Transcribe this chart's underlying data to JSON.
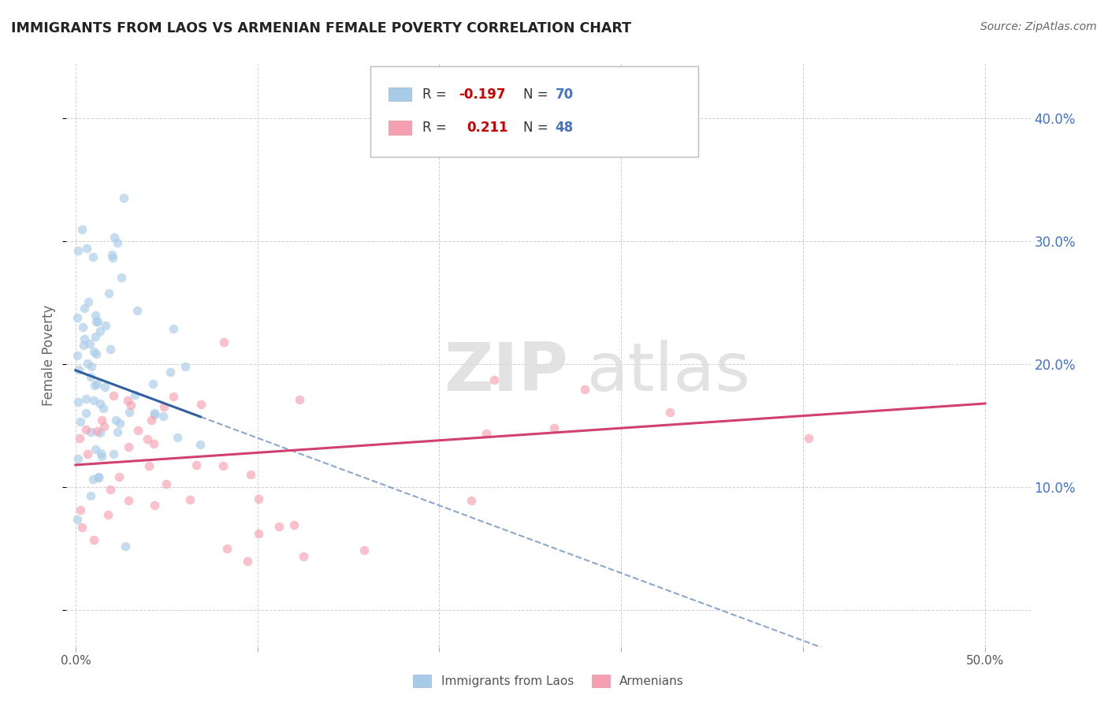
{
  "title": "IMMIGRANTS FROM LAOS VS ARMENIAN FEMALE POVERTY CORRELATION CHART",
  "source": "Source: ZipAtlas.com",
  "ylabel": "Female Poverty",
  "y_tick_vals": [
    0.0,
    0.1,
    0.2,
    0.3,
    0.4
  ],
  "y_tick_labels": [
    "",
    "10.0%",
    "20.0%",
    "30.0%",
    "40.0%"
  ],
  "x_tick_vals": [
    0.0,
    0.1,
    0.2,
    0.3,
    0.4,
    0.5
  ],
  "x_tick_labels": [
    "0.0%",
    "",
    "",
    "",
    "",
    "50.0%"
  ],
  "x_lim": [
    -0.005,
    0.525
  ],
  "y_lim": [
    -0.03,
    0.445
  ],
  "blue_scatter_color": "#a8cce8",
  "pink_scatter_color": "#f5a0b0",
  "blue_line_color": "#3060a0",
  "pink_line_color": "#d04070",
  "blue_line_alpha": 1.0,
  "pink_line_alpha": 1.0,
  "scatter_size": 70,
  "scatter_alpha": 0.65,
  "grid_color": "#cccccc",
  "watermark_color": "#dddddd",
  "right_tick_color": "#4472c4",
  "title_color": "#222222",
  "source_color": "#666666",
  "legend_r1": "R = -0.197",
  "legend_n1": "N = 70",
  "legend_r2": "R =  0.211",
  "legend_n2": "N = 48",
  "legend_r_color": "#cc0000",
  "legend_n_color": "#4472c4",
  "legend_label1": "Immigrants from Laos",
  "legend_label2": "Armenians"
}
